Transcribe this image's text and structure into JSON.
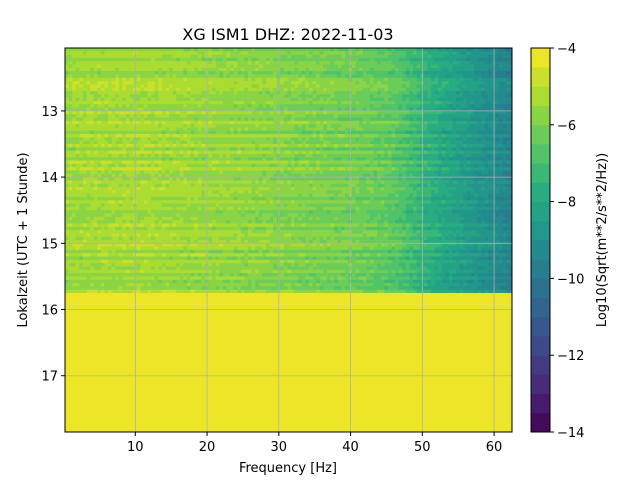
{
  "chart_data": {
    "type": "heatmap",
    "title": "XG ISM1  DHZ: 2022-11-03",
    "xlabel": "Frequency [Hz]",
    "ylabel": "Lokalzeit (UTC + 1 Stunde)",
    "colorbar_label": "Log10(Sqrt(m**2/s**2/Hz))",
    "xlim": [
      0.2,
      62.5
    ],
    "ylim": [
      12.05,
      17.85
    ],
    "y_inverted": true,
    "grid": true,
    "x_ticks": [
      10,
      20,
      30,
      40,
      50,
      60
    ],
    "y_ticks": [
      13,
      14,
      15,
      16,
      17
    ],
    "colorbar_range": [
      -14,
      -4
    ],
    "colorbar_ticks": [
      -4,
      -6,
      -8,
      -10,
      -12,
      -14
    ],
    "colorbar_levels": 20,
    "colormap": "viridis",
    "data_end_time": 15.75,
    "fill_value_after_end": -4,
    "spectrum_profile": [
      {
        "freq": 0.5,
        "value": -5.4
      },
      {
        "freq": 10,
        "value": -5.3
      },
      {
        "freq": 20,
        "value": -5.5
      },
      {
        "freq": 30,
        "value": -5.8
      },
      {
        "freq": 40,
        "value": -6.1
      },
      {
        "freq": 46,
        "value": -6.5
      },
      {
        "freq": 50,
        "value": -7.4
      },
      {
        "freq": 55,
        "value": -8.3
      },
      {
        "freq": 60,
        "value": -9.1
      },
      {
        "freq": 62.5,
        "value": -9.5
      }
    ]
  }
}
